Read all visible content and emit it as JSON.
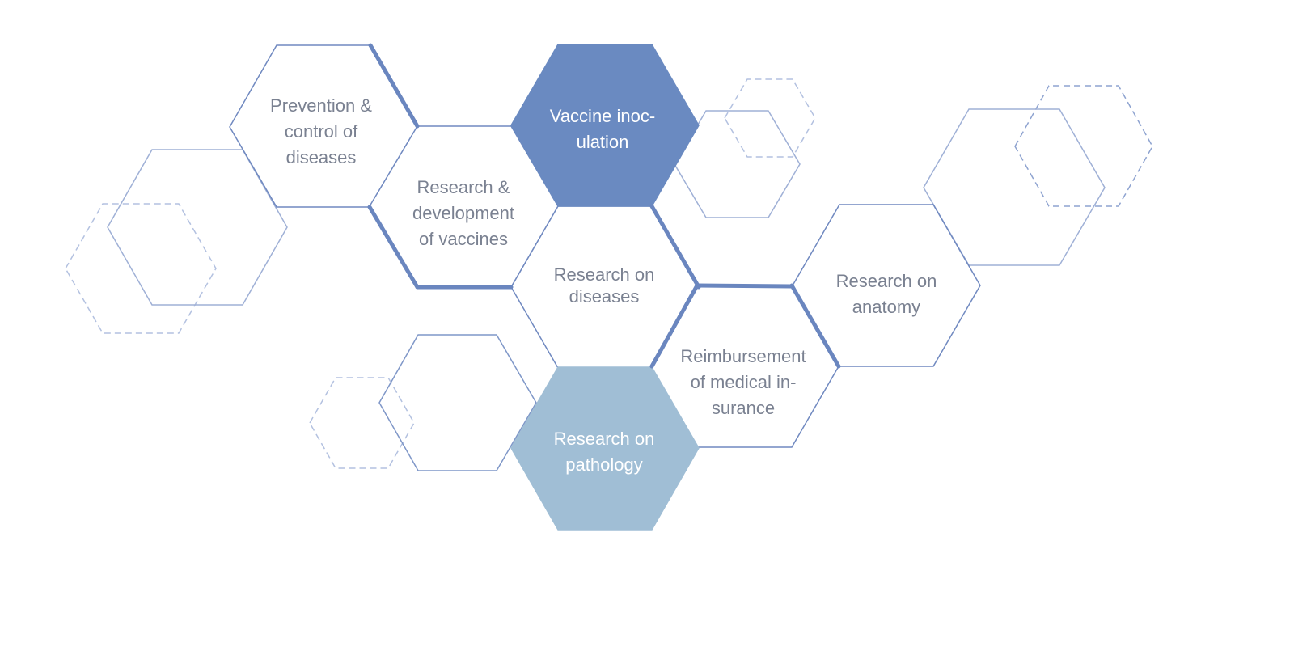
{
  "colors": {
    "outline": "#7089c0",
    "outline_light": "#9fb0d6",
    "dashed": "#b3c1e0",
    "dark_fill": "#6a8ac1",
    "light_fill": "#a0bed5",
    "text_gray": "#7a8191",
    "text_white": "#ffffff"
  },
  "cells": [
    {
      "id": "prevention",
      "lines": [
        "Prevention &",
        "control of",
        "diseases"
      ],
      "style": "outline"
    },
    {
      "id": "vaccine-rd",
      "lines": [
        "Research &",
        "development",
        "of vaccines"
      ],
      "style": "outline"
    },
    {
      "id": "vaccine-inoculation",
      "lines": [
        "Vaccine inoc-",
        "ulation"
      ],
      "style": "dark"
    },
    {
      "id": "diseases-research",
      "lines": [
        "Research on",
        "diseases"
      ],
      "style": "outline"
    },
    {
      "id": "reimbursement",
      "lines": [
        "Reimbursement",
        "of medical in-",
        "surance"
      ],
      "style": "outline"
    },
    {
      "id": "anatomy",
      "lines": [
        "Research on",
        "anatomy"
      ],
      "style": "outline"
    },
    {
      "id": "pathology",
      "lines": [
        "Research on",
        "pathology"
      ],
      "style": "light"
    }
  ]
}
